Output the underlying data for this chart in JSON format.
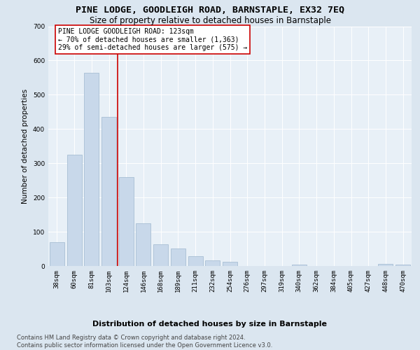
{
  "title": "PINE LODGE, GOODLEIGH ROAD, BARNSTAPLE, EX32 7EQ",
  "subtitle": "Size of property relative to detached houses in Barnstaple",
  "xlabel": "Distribution of detached houses by size in Barnstaple",
  "ylabel": "Number of detached properties",
  "categories": [
    "38sqm",
    "60sqm",
    "81sqm",
    "103sqm",
    "124sqm",
    "146sqm",
    "168sqm",
    "189sqm",
    "211sqm",
    "232sqm",
    "254sqm",
    "276sqm",
    "297sqm",
    "319sqm",
    "340sqm",
    "362sqm",
    "384sqm",
    "405sqm",
    "427sqm",
    "448sqm",
    "470sqm"
  ],
  "values": [
    70,
    325,
    565,
    435,
    260,
    125,
    63,
    52,
    28,
    17,
    12,
    0,
    0,
    0,
    5,
    0,
    0,
    0,
    0,
    7,
    5
  ],
  "bar_color": "#c8d8ea",
  "bar_edge_color": "#a8bfd4",
  "vline_color": "#cc0000",
  "vline_xindex": 3.5,
  "annotation_line1": "PINE LODGE GOODLEIGH ROAD: 123sqm",
  "annotation_line2": "← 70% of detached houses are smaller (1,363)",
  "annotation_line3": "29% of semi-detached houses are larger (575) →",
  "annotation_box_facecolor": "#ffffff",
  "annotation_box_edgecolor": "#cc0000",
  "ylim": [
    0,
    700
  ],
  "yticks": [
    0,
    100,
    200,
    300,
    400,
    500,
    600,
    700
  ],
  "footer_line1": "Contains HM Land Registry data © Crown copyright and database right 2024.",
  "footer_line2": "Contains public sector information licensed under the Open Government Licence v3.0.",
  "fig_bg_color": "#dbe6f0",
  "plot_bg_color": "#e8f0f7",
  "title_fontsize": 9.5,
  "subtitle_fontsize": 8.5,
  "xlabel_fontsize": 8,
  "ylabel_fontsize": 7.5,
  "tick_fontsize": 6.5,
  "footer_fontsize": 6,
  "annotation_fontsize": 7
}
